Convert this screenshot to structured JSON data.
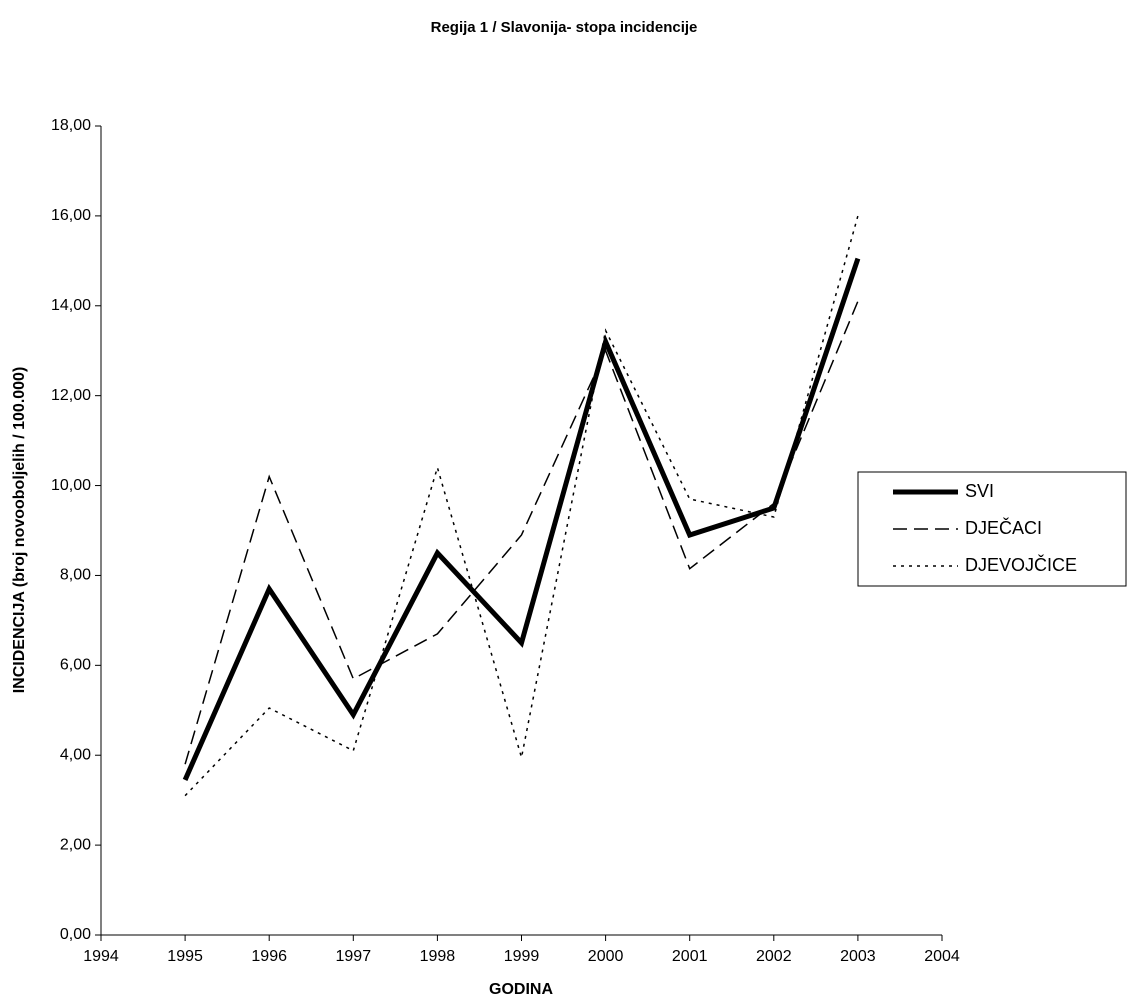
{
  "chart_data": {
    "type": "line",
    "title": "Regija 1 / Slavonija- stopa incidencije",
    "x_label": "GODINA",
    "y_label": "INCIDENCIJA (broj novooboljelih / 100.000)",
    "x": [
      1995,
      1996,
      1997,
      1998,
      1999,
      2000,
      2001,
      2002,
      2003
    ],
    "series": [
      {
        "name": "SVI",
        "color": "#000000",
        "style": "thick",
        "values": [
          3.45,
          7.7,
          4.9,
          8.5,
          6.5,
          13.2,
          8.9,
          9.5,
          15.05
        ]
      },
      {
        "name": "DJEČACI",
        "color": "#000000",
        "style": "dashed",
        "values": [
          3.8,
          10.2,
          5.7,
          6.7,
          8.9,
          13.0,
          8.15,
          9.6,
          14.1
        ]
      },
      {
        "name": "DJEVOJČICE",
        "color": "#000000",
        "style": "dotted",
        "values": [
          3.1,
          5.05,
          4.1,
          10.4,
          3.95,
          13.45,
          9.7,
          9.3,
          16.0
        ]
      }
    ],
    "xlim": [
      1994,
      2004
    ],
    "xticks": [
      1994,
      1995,
      1996,
      1997,
      1998,
      1999,
      2000,
      2001,
      2002,
      2003,
      2004
    ],
    "ylim": [
      0,
      18
    ],
    "yticks": [
      {
        "value": 0,
        "label": "0,00"
      },
      {
        "value": 2,
        "label": "2,00"
      },
      {
        "value": 4,
        "label": "4,00"
      },
      {
        "value": 6,
        "label": "6,00"
      },
      {
        "value": 8,
        "label": "8,00"
      },
      {
        "value": 10,
        "label": "10,00"
      },
      {
        "value": 12,
        "label": "12,00"
      },
      {
        "value": 14,
        "label": "14,00"
      },
      {
        "value": 16,
        "label": "16,00"
      },
      {
        "value": 18,
        "label": "18,00"
      }
    ],
    "grid": false,
    "legend": "right"
  }
}
